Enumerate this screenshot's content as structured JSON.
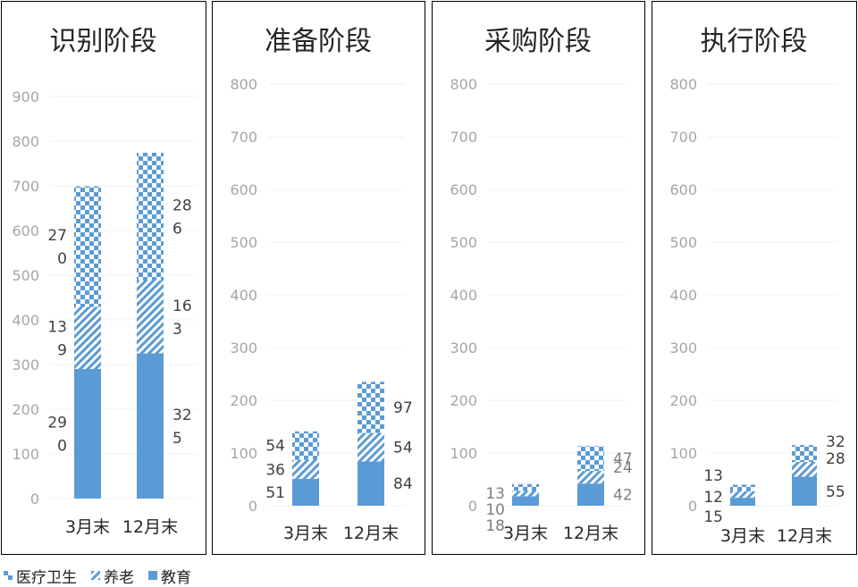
{
  "colors": {
    "bar": "#5b9bd5",
    "frame": "#7f7f7f",
    "grid": "#f2f2f2",
    "axis_text": "#a6a6a6",
    "label": "#404040"
  },
  "legend": [
    {
      "name": "医疗卫生",
      "pattern": "checker"
    },
    {
      "name": "养老",
      "pattern": "diag"
    },
    {
      "name": "教育",
      "pattern": "solid"
    }
  ],
  "chart_data": [
    {
      "type": "bar",
      "stacked": true,
      "title": "识别阶段",
      "categories": [
        "3月末",
        "12月末"
      ],
      "yticks": [
        "0",
        "100",
        "200",
        "300",
        "400",
        "500",
        "600",
        "700",
        "800",
        "900"
      ],
      "ylim": [
        0,
        900
      ],
      "series": [
        {
          "name": "教育",
          "values": [
            290,
            325
          ],
          "labels": [
            "29\n0",
            "32\n5"
          ]
        },
        {
          "name": "养老",
          "values": [
            139,
            163
          ],
          "labels": [
            "13\n9",
            "16\n3"
          ]
        },
        {
          "name": "医疗卫生",
          "values": [
            270,
            286
          ],
          "labels": [
            "27\n0",
            "28\n6"
          ]
        }
      ]
    },
    {
      "type": "bar",
      "stacked": true,
      "title": "准备阶段",
      "categories": [
        "3月末",
        "12月末"
      ],
      "yticks": [
        "0",
        "100",
        "200",
        "300",
        "400",
        "500",
        "600",
        "700",
        "800"
      ],
      "ylim": [
        0,
        800
      ],
      "series": [
        {
          "name": "教育",
          "values": [
            51,
            84
          ],
          "labels": [
            "51",
            "84"
          ]
        },
        {
          "name": "养老",
          "values": [
            36,
            54
          ],
          "labels": [
            "36",
            "54"
          ]
        },
        {
          "name": "医疗卫生",
          "values": [
            54,
            97
          ],
          "labels": [
            "54",
            "97"
          ]
        }
      ]
    },
    {
      "type": "bar",
      "stacked": true,
      "title": "采购阶段",
      "categories": [
        "3月末",
        "12月末"
      ],
      "yticks": [
        "0",
        "100",
        "200",
        "300",
        "400",
        "500",
        "600",
        "700",
        "800"
      ],
      "ylim": [
        0,
        800
      ],
      "series": [
        {
          "name": "教育",
          "values": [
            18,
            42
          ],
          "labels": [
            "18",
            "42"
          ]
        },
        {
          "name": "养老",
          "values": [
            10,
            24
          ],
          "labels": [
            "10",
            "24"
          ]
        },
        {
          "name": "医疗卫生",
          "values": [
            13,
            47
          ],
          "labels": [
            "13",
            "47"
          ]
        }
      ]
    },
    {
      "type": "bar",
      "stacked": true,
      "title": "执行阶段",
      "categories": [
        "3月末",
        "12月末"
      ],
      "yticks": [
        "0",
        "100",
        "200",
        "300",
        "400",
        "500",
        "600",
        "700",
        "800"
      ],
      "ylim": [
        0,
        800
      ],
      "series": [
        {
          "name": "教育",
          "values": [
            15,
            55
          ],
          "labels": [
            "15",
            "55"
          ]
        },
        {
          "name": "养老",
          "values": [
            12,
            28
          ],
          "labels": [
            "12",
            "28"
          ]
        },
        {
          "name": "医疗卫生",
          "values": [
            13,
            32
          ],
          "labels": [
            "13",
            "32"
          ]
        }
      ]
    }
  ]
}
